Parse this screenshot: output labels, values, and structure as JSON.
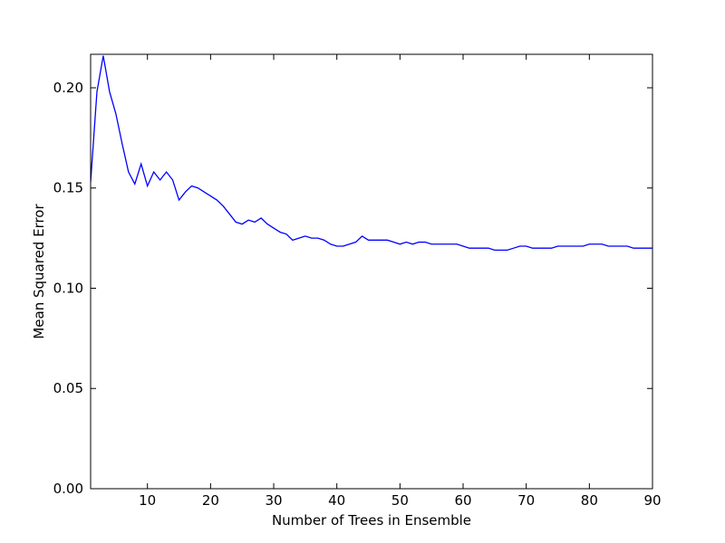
{
  "chart_data": {
    "type": "line",
    "title": "",
    "xlabel": "Number of Trees in Ensemble",
    "ylabel": "Mean Squared Error",
    "xlim": [
      1,
      90
    ],
    "ylim": [
      0.0,
      0.2167
    ],
    "grid": false,
    "legend": "none",
    "line_color": "#0000ff",
    "x_ticks": [
      10,
      20,
      30,
      40,
      50,
      60,
      70,
      80,
      90
    ],
    "x_tick_labels": [
      "10",
      "20",
      "30",
      "40",
      "50",
      "60",
      "70",
      "80",
      "90"
    ],
    "y_ticks": [
      0.0,
      0.05,
      0.1,
      0.15,
      0.2
    ],
    "y_tick_labels": [
      "0.00",
      "0.05",
      "0.10",
      "0.15",
      "0.20"
    ],
    "series": [
      {
        "x": [
          1,
          2,
          3,
          4,
          5,
          6,
          7,
          8,
          9,
          10,
          11,
          12,
          13,
          14,
          15,
          16,
          17,
          18,
          19,
          20,
          21,
          22,
          23,
          24,
          25,
          26,
          27,
          28,
          29,
          30,
          31,
          32,
          33,
          34,
          35,
          36,
          37,
          38,
          39,
          40,
          41,
          42,
          43,
          44,
          45,
          46,
          47,
          48,
          49,
          50,
          51,
          52,
          53,
          54,
          55,
          56,
          57,
          58,
          59,
          60,
          61,
          62,
          63,
          64,
          65,
          66,
          67,
          68,
          69,
          70,
          71,
          72,
          73,
          74,
          75,
          76,
          77,
          78,
          79,
          80,
          81,
          82,
          83,
          84,
          85,
          86,
          87,
          88,
          89,
          90
        ],
        "y": [
          0.153,
          0.198,
          0.216,
          0.198,
          0.187,
          0.172,
          0.158,
          0.152,
          0.162,
          0.151,
          0.158,
          0.154,
          0.158,
          0.154,
          0.144,
          0.148,
          0.151,
          0.15,
          0.148,
          0.146,
          0.144,
          0.141,
          0.137,
          0.133,
          0.132,
          0.134,
          0.133,
          0.135,
          0.132,
          0.13,
          0.128,
          0.127,
          0.124,
          0.125,
          0.126,
          0.125,
          0.125,
          0.124,
          0.122,
          0.121,
          0.121,
          0.122,
          0.123,
          0.126,
          0.124,
          0.124,
          0.124,
          0.124,
          0.123,
          0.122,
          0.123,
          0.122,
          0.123,
          0.123,
          0.122,
          0.122,
          0.122,
          0.122,
          0.122,
          0.121,
          0.12,
          0.12,
          0.12,
          0.12,
          0.119,
          0.119,
          0.119,
          0.12,
          0.121,
          0.121,
          0.12,
          0.12,
          0.12,
          0.12,
          0.121,
          0.121,
          0.121,
          0.121,
          0.121,
          0.122,
          0.122,
          0.122,
          0.121,
          0.121,
          0.121,
          0.121,
          0.12,
          0.12,
          0.12,
          0.12
        ]
      }
    ]
  }
}
